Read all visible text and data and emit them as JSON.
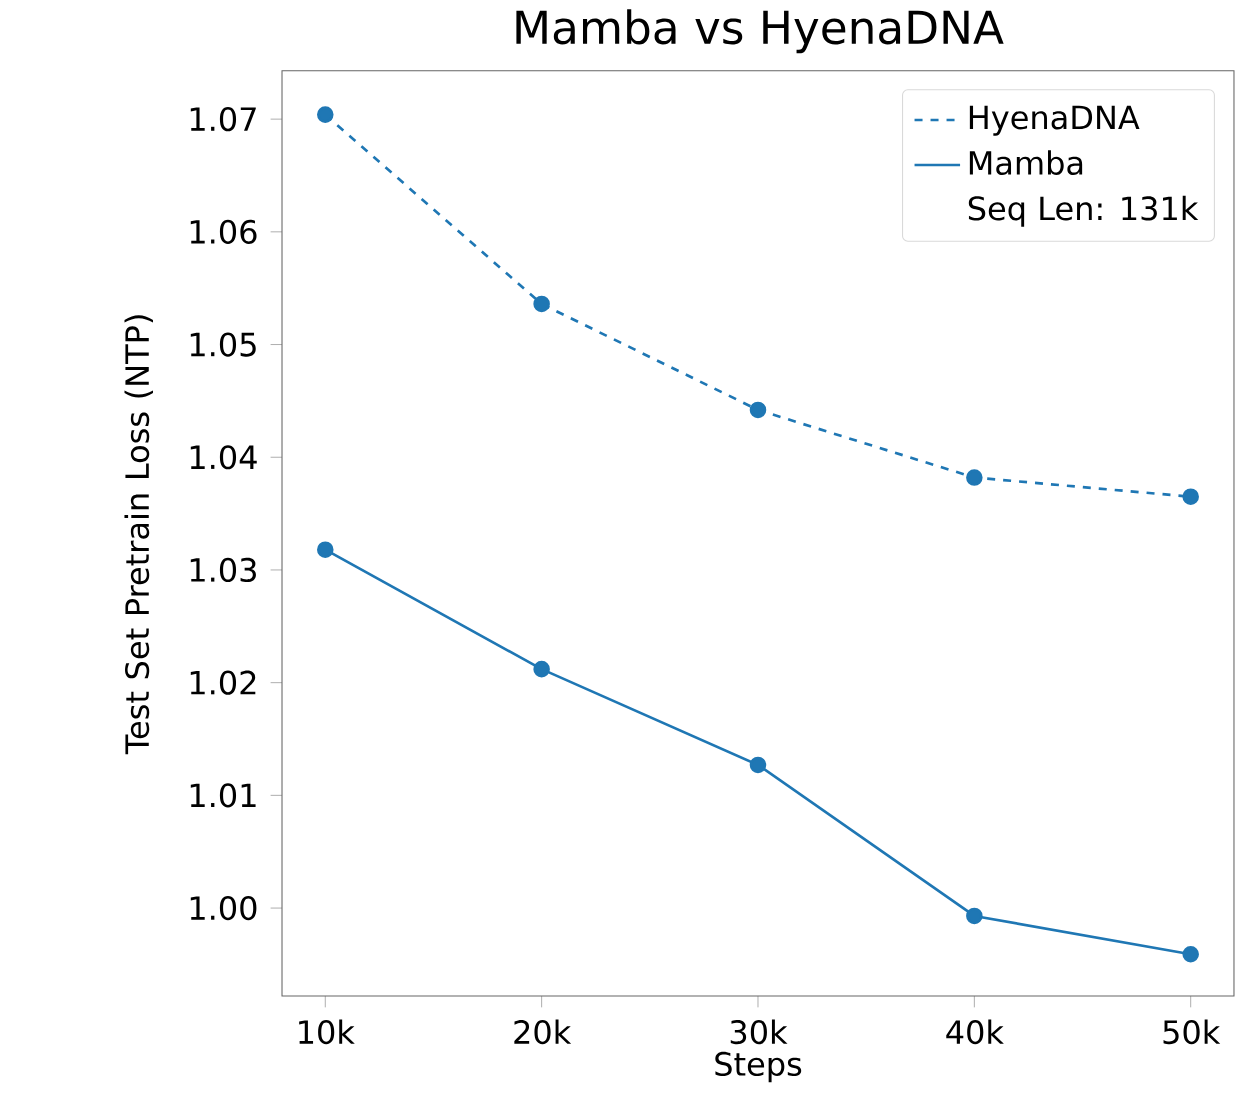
{
  "chart_data": {
    "type": "line",
    "title": "Mamba vs HyenaDNA",
    "xlabel": "Steps",
    "ylabel": "Test Set Pretrain Loss (NTP)",
    "x": [
      10000,
      20000,
      30000,
      40000,
      50000
    ],
    "series": [
      {
        "name": "HyenaDNA",
        "color": "#1f77b4",
        "line_style": "dashed",
        "values": [
          1.0704,
          1.0536,
          1.0442,
          1.0382,
          1.0365
        ]
      },
      {
        "name": "Mamba",
        "color": "#1f77b4",
        "line_style": "solid",
        "values": [
          1.0318,
          1.0212,
          1.0127,
          0.9993,
          0.9959
        ]
      }
    ],
    "xlim": [
      8000,
      52000
    ],
    "ylim": [
      0.9922,
      1.0743
    ],
    "xticks": [
      {
        "value": 10000,
        "label": "10k"
      },
      {
        "value": 20000,
        "label": "20k"
      },
      {
        "value": 30000,
        "label": "30k"
      },
      {
        "value": 40000,
        "label": "40k"
      },
      {
        "value": 50000,
        "label": "50k"
      }
    ],
    "yticks": [
      {
        "value": 1.0,
        "label": "1.00"
      },
      {
        "value": 1.01,
        "label": "1.01"
      },
      {
        "value": 1.02,
        "label": "1.02"
      },
      {
        "value": 1.03,
        "label": "1.03"
      },
      {
        "value": 1.04,
        "label": "1.04"
      },
      {
        "value": 1.05,
        "label": "1.05"
      },
      {
        "value": 1.06,
        "label": "1.06"
      },
      {
        "value": 1.07,
        "label": "1.07"
      }
    ],
    "annotations": [
      "Seq Len: 131k"
    ],
    "legend": "top right",
    "marker": "circle",
    "grid": false
  }
}
